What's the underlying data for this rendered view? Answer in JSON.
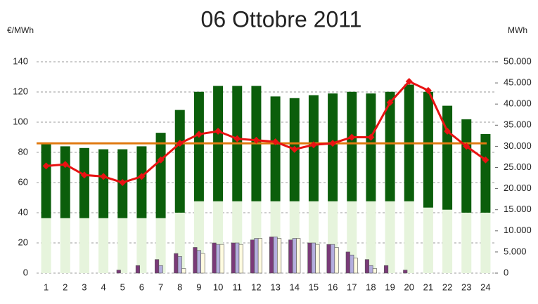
{
  "chart_data": {
    "type": "bar-line",
    "title": "06 Ottobre 2011",
    "ylabel": "€/MWh",
    "y2label": "MWh",
    "categories": [
      "1",
      "2",
      "3",
      "4",
      "5",
      "6",
      "7",
      "8",
      "9",
      "10",
      "11",
      "12",
      "13",
      "14",
      "15",
      "16",
      "17",
      "18",
      "19",
      "20",
      "21",
      "22",
      "23",
      "24"
    ],
    "ylim": [
      0,
      140
    ],
    "yticks": [
      0,
      20,
      40,
      60,
      80,
      100,
      120,
      140
    ],
    "y2lim": [
      0,
      50000
    ],
    "y2ticks": [
      0,
      {
        "value": 5000,
        "label": "5.000"
      },
      {
        "value": 10000,
        "label": "10.000"
      },
      {
        "value": 15000,
        "label": "15.000"
      },
      {
        "value": 20000,
        "label": "20.000"
      },
      {
        "value": 25000,
        "label": "25.000"
      },
      {
        "value": 30000,
        "label": "30.000"
      },
      {
        "value": 35000,
        "label": "35.000"
      },
      {
        "value": 40000,
        "label": "40.000"
      },
      {
        "value": 45000,
        "label": "45.000"
      },
      {
        "value": 50000,
        "label": "50.000"
      }
    ],
    "grid": true,
    "stacked_series": [
      {
        "color": "#e6f4dc",
        "axis": "y2",
        "values": [
          13000,
          13000,
          13000,
          13000,
          13000,
          13000,
          13000,
          14300,
          17000,
          17000,
          17000,
          17000,
          17000,
          17000,
          17000,
          17000,
          17000,
          17000,
          17000,
          17000,
          15500,
          15000,
          14300,
          14300
        ]
      },
      {
        "color": "#0b5e0b",
        "axis": "y2",
        "values": [
          17700,
          17000,
          16600,
          16300,
          16300,
          17000,
          20200,
          24300,
          25900,
          27300,
          27300,
          27300,
          24800,
          24400,
          25100,
          25500,
          25900,
          25500,
          25900,
          27600,
          27400,
          24600,
          22100,
          18600
        ]
      }
    ],
    "group_series": [
      {
        "color": "#7a3a78",
        "values": [
          null,
          null,
          null,
          null,
          2,
          5,
          9,
          13,
          17,
          20,
          20,
          22,
          24,
          22,
          20,
          19,
          14,
          9,
          5,
          2,
          null,
          null,
          null,
          null
        ]
      },
      {
        "color": "#b4aede",
        "values": [
          null,
          null,
          null,
          null,
          null,
          null,
          5,
          11,
          15,
          19,
          20,
          23,
          24,
          23,
          20,
          19,
          12,
          5,
          null,
          null,
          null,
          null,
          null,
          null
        ]
      },
      {
        "color": "#fffbe0",
        "values": [
          null,
          null,
          null,
          null,
          null,
          null,
          null,
          3,
          13,
          19,
          19,
          23,
          23,
          23,
          19,
          17,
          10,
          3,
          null,
          null,
          null,
          null,
          null,
          null
        ]
      }
    ],
    "line_series": {
      "color": "#e81212",
      "values": [
        71,
        72,
        65,
        64,
        60,
        64,
        75,
        86,
        92,
        94,
        89,
        88,
        87,
        82,
        85,
        86,
        90,
        90,
        113,
        127,
        121,
        94,
        84,
        75
      ]
    },
    "hline": {
      "color": "#e07a10",
      "value": 86
    }
  }
}
